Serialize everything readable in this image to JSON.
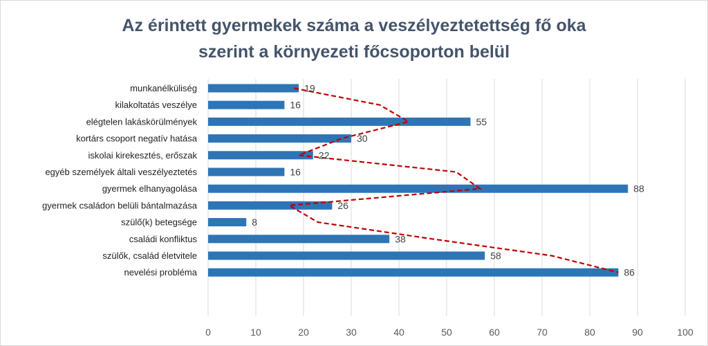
{
  "chart_data": {
    "type": "bar",
    "orientation": "horizontal",
    "title_lines": [
      "Az érintett gyermekek száma a veszélyeztetettség fő oka",
      "szerint a környezeti főcsoporton belül"
    ],
    "categories": [
      "munkanélküliség",
      "kilakoltatás veszélye",
      "elégtelen lakáskörülmények",
      "kortárs csoport negatív hatása",
      "iskolai kirekesztés, erőszak",
      "egyéb személyek általi veszélyeztetés",
      "gyermek elhanyagolása",
      "gyermek családon belüli bántalmazása",
      "szülő(k) betegsége",
      "családi konfliktus",
      "szülők, család életvitele",
      "nevelési probléma"
    ],
    "values": [
      19,
      16,
      55,
      30,
      22,
      16,
      88,
      26,
      8,
      38,
      58,
      86
    ],
    "trend_line": {
      "style": "dashed",
      "color": "#c00000",
      "points": [
        {
          "category": "munkanélküliség",
          "x": 18
        },
        {
          "category": "kilakoltatás veszélye",
          "x": 36
        },
        {
          "category": "elégtelen lakáskörülmények",
          "x": 42
        },
        {
          "category": "kortárs csoport negatív hatása",
          "x": 28
        },
        {
          "category": "iskolai kirekesztés, erőszak",
          "x": 19
        },
        {
          "category": "egyéb személyek általi veszélyeztetés",
          "x": 52
        },
        {
          "category": "gyermek elhanyagolása",
          "x": 57
        },
        {
          "category": "gyermek családon belüli bántalmazása",
          "x": 17
        },
        {
          "category": "szülő(k) betegsége",
          "x": 23
        },
        {
          "category": "családi konfliktus",
          "x": 47
        },
        {
          "category": "szülők, család életvitele",
          "x": 72
        },
        {
          "category": "nevelési probléma",
          "x": 86
        }
      ]
    },
    "xlim": [
      0,
      100
    ],
    "xticks": [
      0,
      10,
      20,
      30,
      40,
      50,
      60,
      70,
      80,
      90,
      100
    ],
    "grid": "vertical",
    "legend": "none",
    "colors": {
      "bar": "#2e75b6",
      "grid": "#d9d9d9",
      "title": "#44546a",
      "trend": "#c00000"
    }
  }
}
